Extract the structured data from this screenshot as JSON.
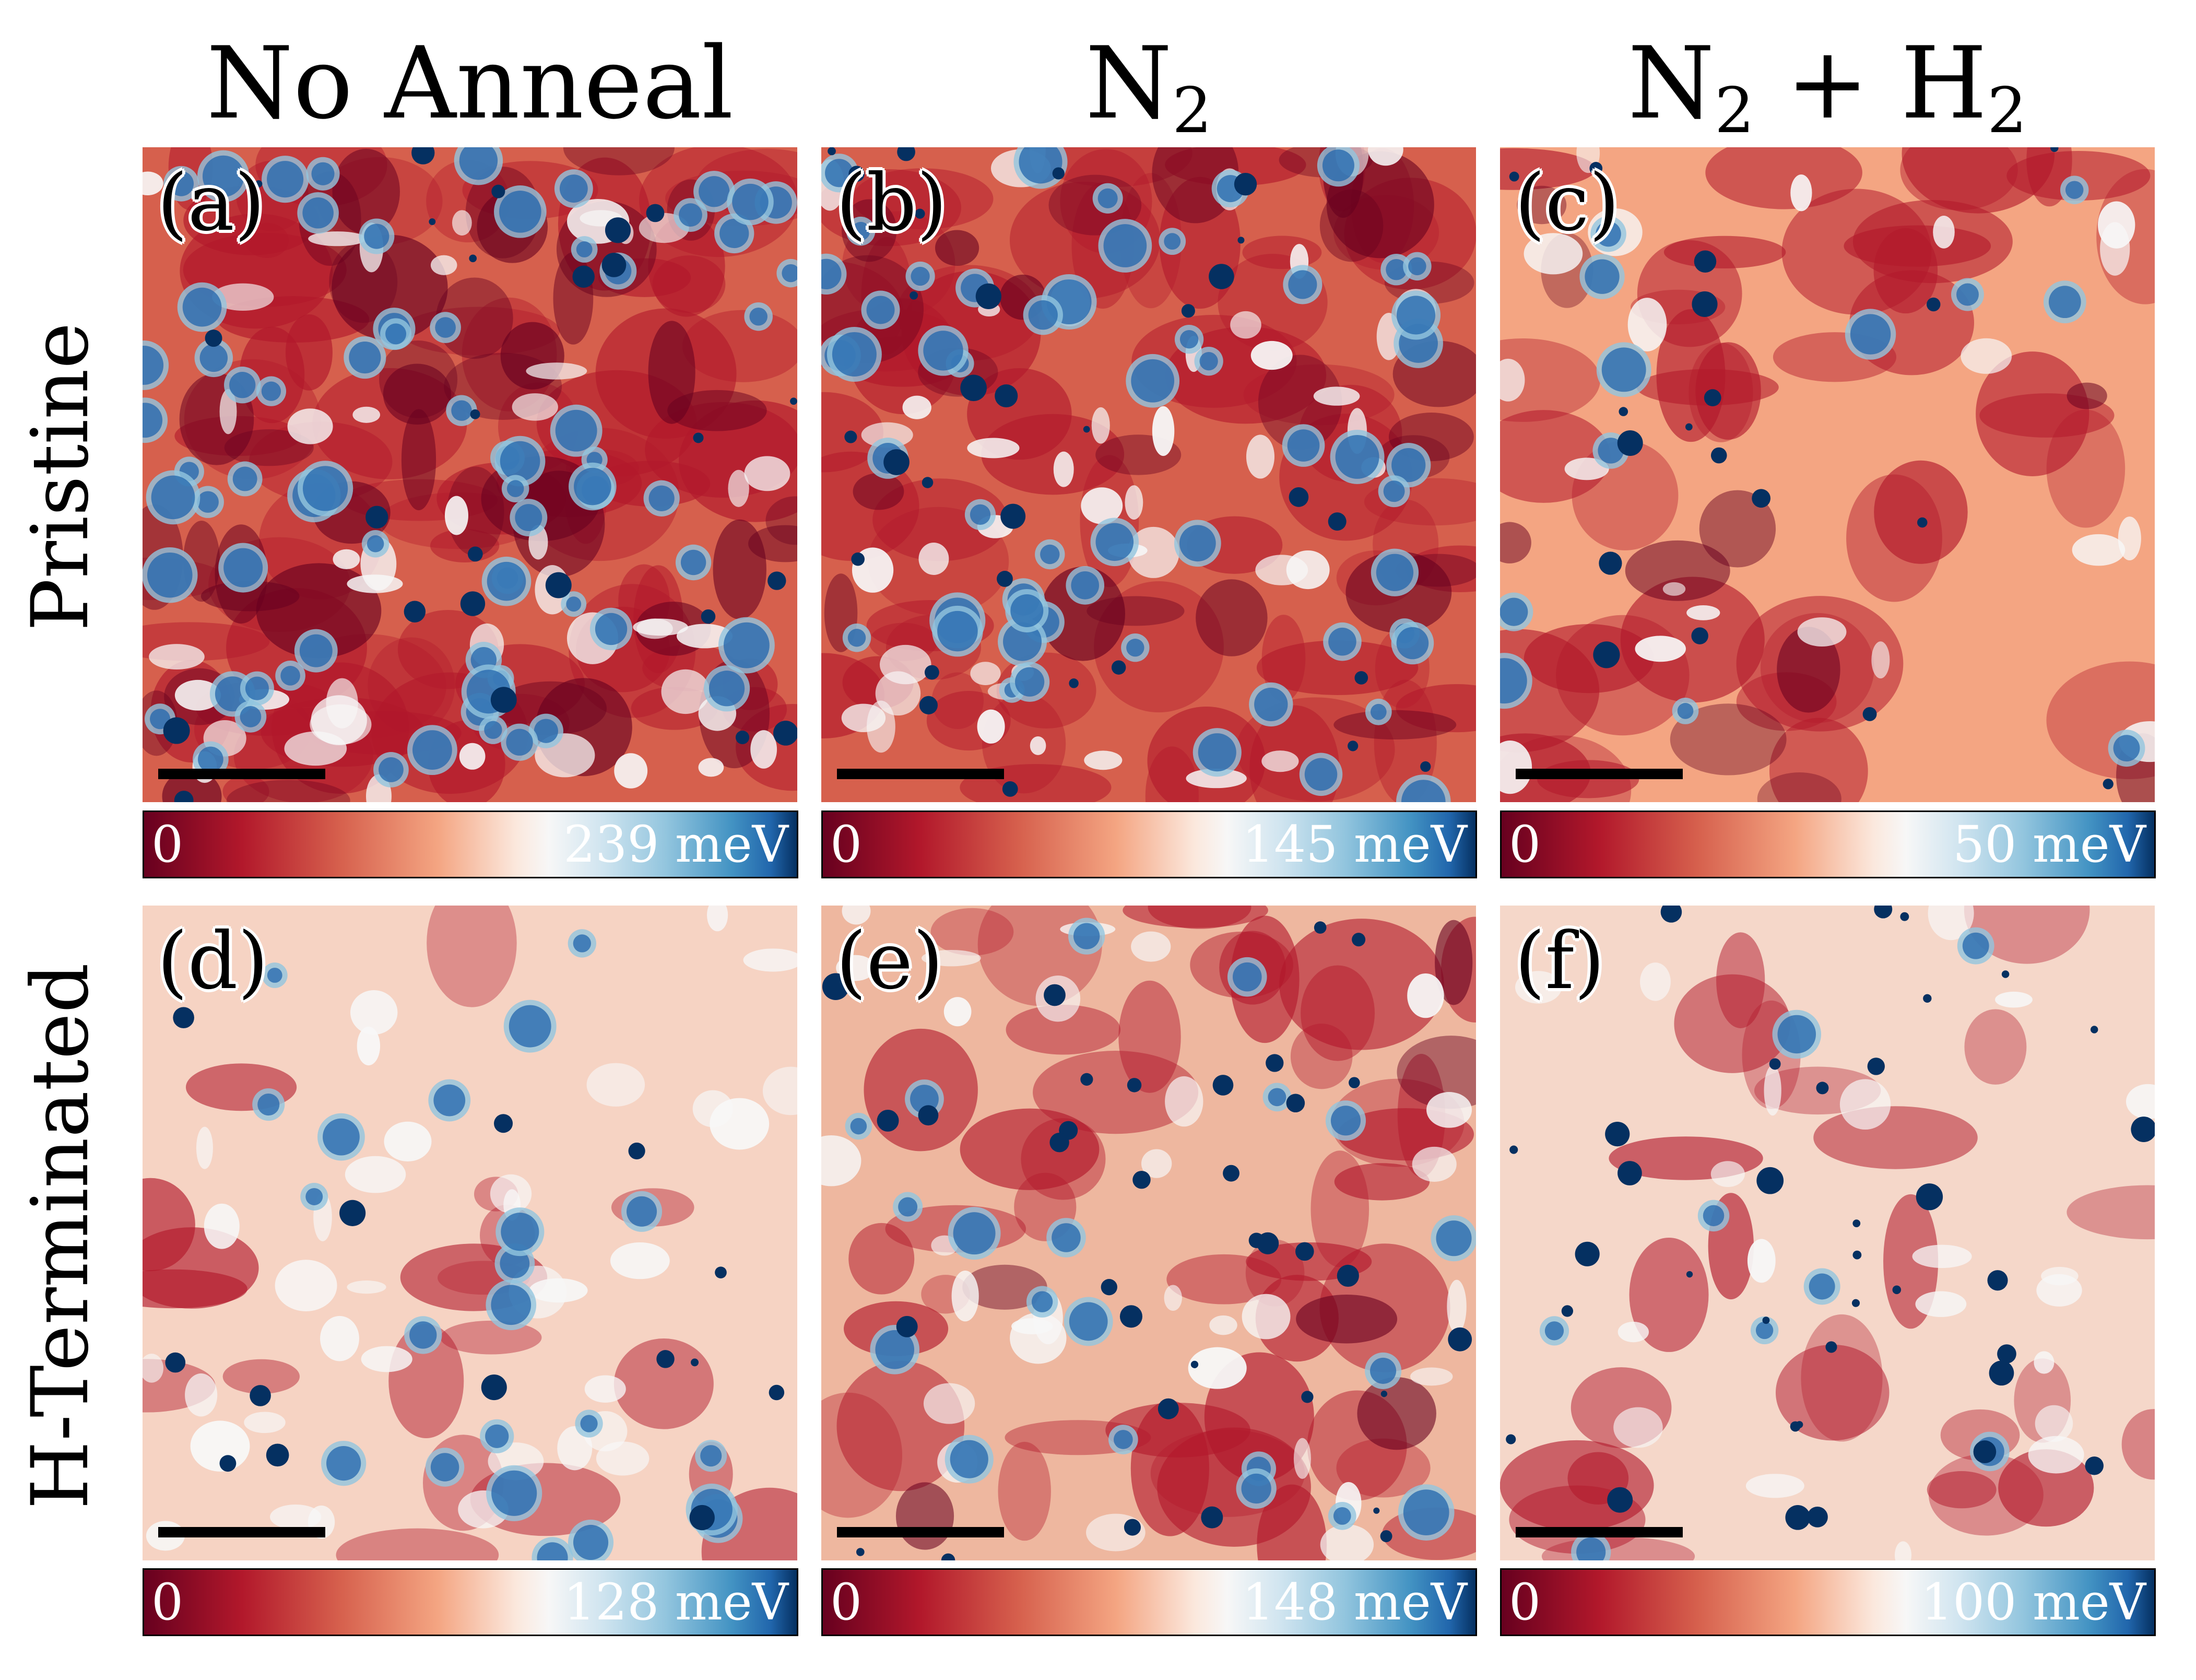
{
  "figure": {
    "columns": [
      "No Anneal",
      "N",
      "N"
    ],
    "column_subscripts": [
      "",
      "2",
      "2"
    ],
    "column3_rest": " + H",
    "column3_rest_subscript": "2",
    "rows": [
      "Pristine",
      "H-Terminated"
    ]
  },
  "panels": [
    {
      "label": "(a)",
      "cbar_min": "0",
      "cbar_max": "239 meV"
    },
    {
      "label": "(b)",
      "cbar_min": "0",
      "cbar_max": "145 meV"
    },
    {
      "label": "(c)",
      "cbar_min": "0",
      "cbar_max": "50 meV"
    },
    {
      "label": "(d)",
      "cbar_min": "0",
      "cbar_max": "128 meV"
    },
    {
      "label": "(e)",
      "cbar_min": "0",
      "cbar_max": "148 meV"
    },
    {
      "label": "(f)",
      "cbar_min": "0",
      "cbar_max": "100 meV"
    }
  ],
  "colors": {
    "red_dark": "#67001f",
    "red": "#b2182b",
    "salmon": "#d6604d",
    "peach": "#f4a582",
    "white": "#f7f7f7",
    "light_blue": "#92c5de",
    "blue": "#2166ac",
    "navy": "#053061"
  }
}
